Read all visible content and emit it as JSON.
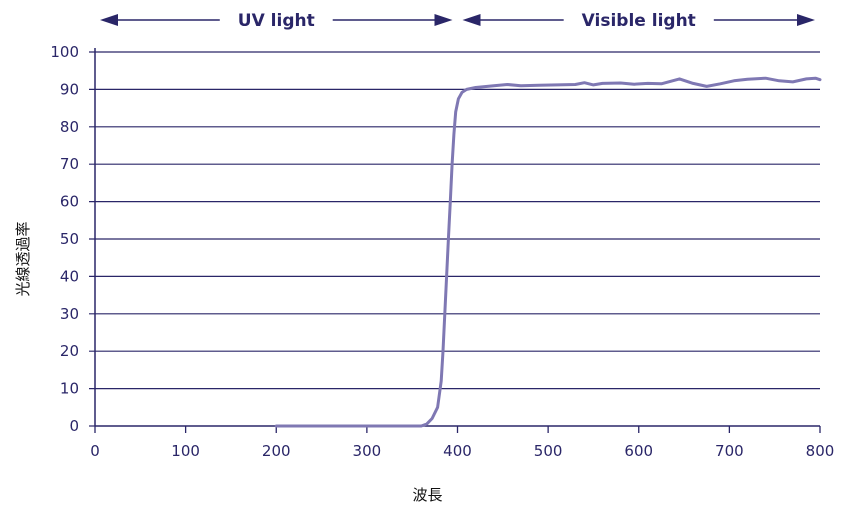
{
  "chart_data": {
    "type": "line",
    "xlabel": "波長",
    "ylabel": "光線透過率",
    "xlim": [
      0,
      800
    ],
    "ylim": [
      0,
      100
    ],
    "x_ticks": [
      "0",
      "100",
      "200",
      "300",
      "400",
      "500",
      "600",
      "700",
      "800"
    ],
    "y_ticks": [
      "0",
      "10",
      "20",
      "30",
      "40",
      "50",
      "60",
      "70",
      "80",
      "90",
      "100"
    ],
    "grid": "horizontal",
    "regions": [
      {
        "label": "UV light",
        "from": 0,
        "to": 400
      },
      {
        "label": "Visible light",
        "from": 400,
        "to": 800
      }
    ],
    "series": [
      {
        "points": [
          [
            200,
            0
          ],
          [
            300,
            0
          ],
          [
            360,
            0
          ],
          [
            366,
            0.5
          ],
          [
            372,
            2
          ],
          [
            378,
            5
          ],
          [
            382,
            12
          ],
          [
            384,
            20
          ],
          [
            386,
            30
          ],
          [
            388,
            40
          ],
          [
            390,
            50
          ],
          [
            392,
            60
          ],
          [
            394,
            70
          ],
          [
            396,
            78
          ],
          [
            398,
            84
          ],
          [
            401,
            87.5
          ],
          [
            405,
            89.2
          ],
          [
            410,
            90
          ],
          [
            420,
            90.5
          ],
          [
            440,
            91
          ],
          [
            455,
            91.3
          ],
          [
            470,
            91
          ],
          [
            490,
            91.1
          ],
          [
            510,
            91.2
          ],
          [
            530,
            91.3
          ],
          [
            540,
            91.8
          ],
          [
            550,
            91.2
          ],
          [
            560,
            91.6
          ],
          [
            580,
            91.7
          ],
          [
            595,
            91.4
          ],
          [
            610,
            91.6
          ],
          [
            625,
            91.5
          ],
          [
            645,
            92.8
          ],
          [
            660,
            91.6
          ],
          [
            675,
            90.8
          ],
          [
            690,
            91.5
          ],
          [
            705,
            92.3
          ],
          [
            720,
            92.7
          ],
          [
            740,
            93
          ],
          [
            755,
            92.3
          ],
          [
            770,
            92
          ],
          [
            785,
            92.8
          ],
          [
            795,
            93
          ],
          [
            800,
            92.6
          ]
        ]
      }
    ],
    "colors": {
      "line": "#7f78b3",
      "grid": "#2a2668",
      "text": "#2a2668"
    }
  }
}
